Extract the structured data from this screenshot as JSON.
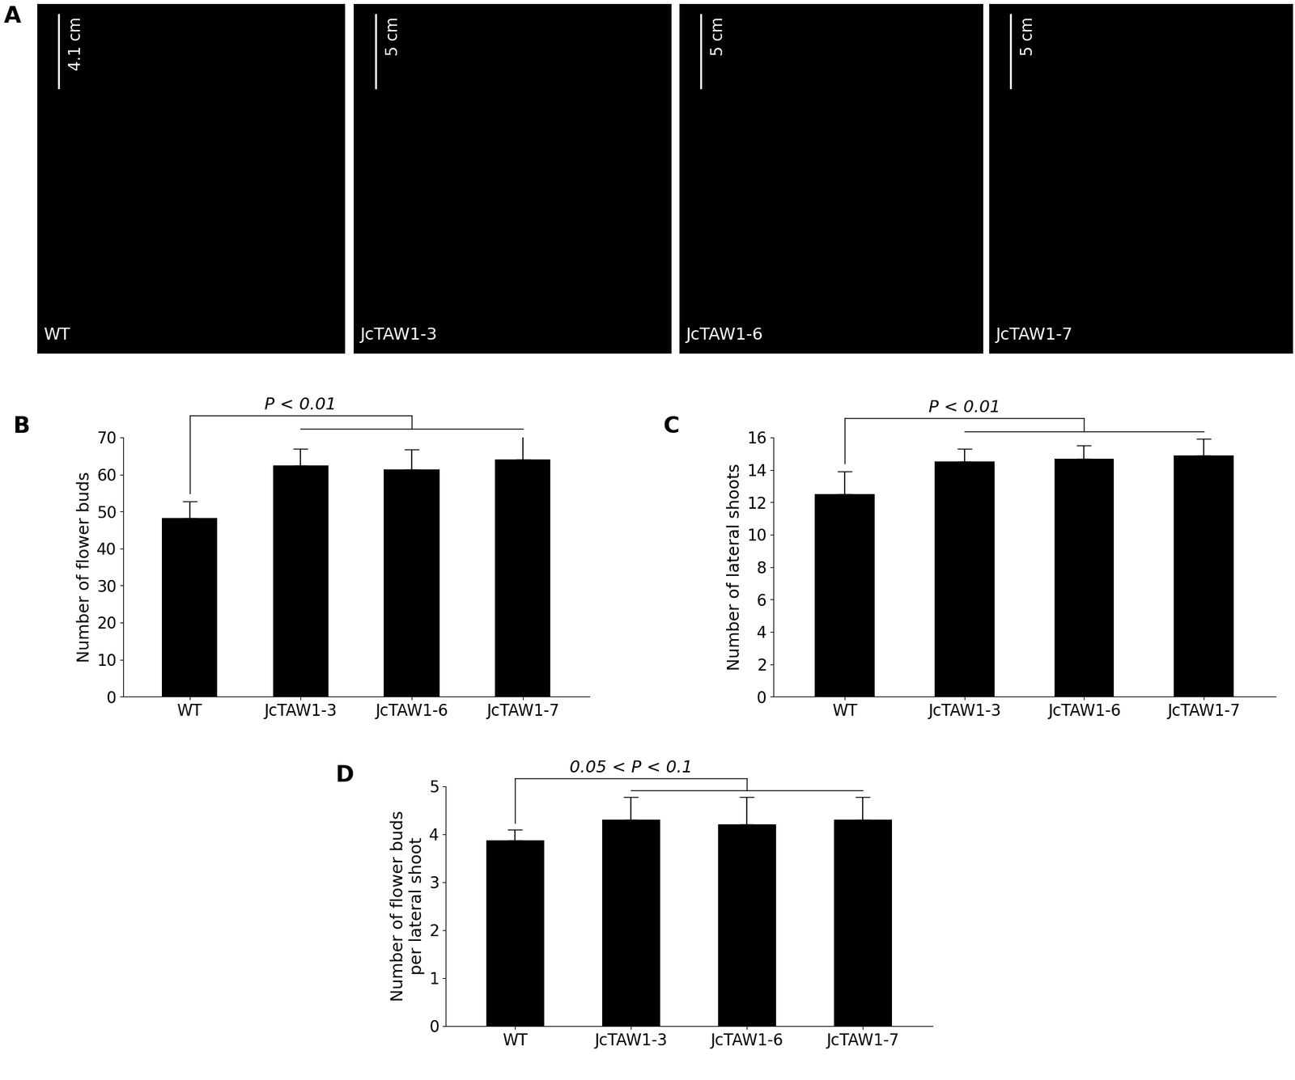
{
  "photos": {
    "panel_label": "A",
    "images": [
      {
        "label": "WT",
        "scale_bar": "4.1 cm"
      },
      {
        "label": "JcTAW1-3",
        "scale_bar": "5 cm"
      },
      {
        "label": "JcTAW1-6",
        "scale_bar": "5 cm"
      },
      {
        "label": "JcTAW1-7",
        "scale_bar": "5 cm"
      }
    ]
  },
  "chart_data": [
    {
      "type": "bar",
      "panel_label": "B",
      "y_label": "Number of flower buds",
      "categories": [
        "WT",
        "JcTAW1-3",
        "JcTAW1-6",
        "JcTAW1-7"
      ],
      "values": [
        48.3,
        62.5,
        61.3,
        64.0
      ],
      "errors": [
        4.5,
        4.5,
        5.5,
        6.3
      ],
      "color": "#000000",
      "ylim": [
        0,
        70
      ],
      "yticks": [
        0,
        10,
        20,
        30,
        40,
        50,
        60,
        70
      ],
      "annotation": "P < 0.01"
    },
    {
      "type": "bar",
      "panel_label": "C",
      "y_label": "Number of lateral shoots",
      "categories": [
        "WT",
        "JcTAW1-3",
        "JcTAW1-6",
        "JcTAW1-7"
      ],
      "values": [
        12.5,
        14.5,
        14.7,
        14.9
      ],
      "errors": [
        1.4,
        0.8,
        0.8,
        1.0
      ],
      "color": "#000000",
      "ylim": [
        0,
        16
      ],
      "yticks": [
        0,
        2,
        4,
        6,
        8,
        10,
        12,
        14,
        16
      ],
      "annotation": "P < 0.01"
    },
    {
      "type": "bar",
      "panel_label": "D",
      "y_label": "Number of flower buds\nper lateral shoot",
      "categories": [
        "WT",
        "JcTAW1-3",
        "JcTAW1-6",
        "JcTAW1-7"
      ],
      "values": [
        3.87,
        4.3,
        4.2,
        4.3
      ],
      "errors": [
        0.22,
        0.47,
        0.57,
        0.47
      ],
      "color": "#000000",
      "ylim": [
        0,
        5
      ],
      "yticks": [
        0,
        1,
        2,
        3,
        4,
        5
      ],
      "annotation": "0.05 < P < 0.1"
    }
  ]
}
